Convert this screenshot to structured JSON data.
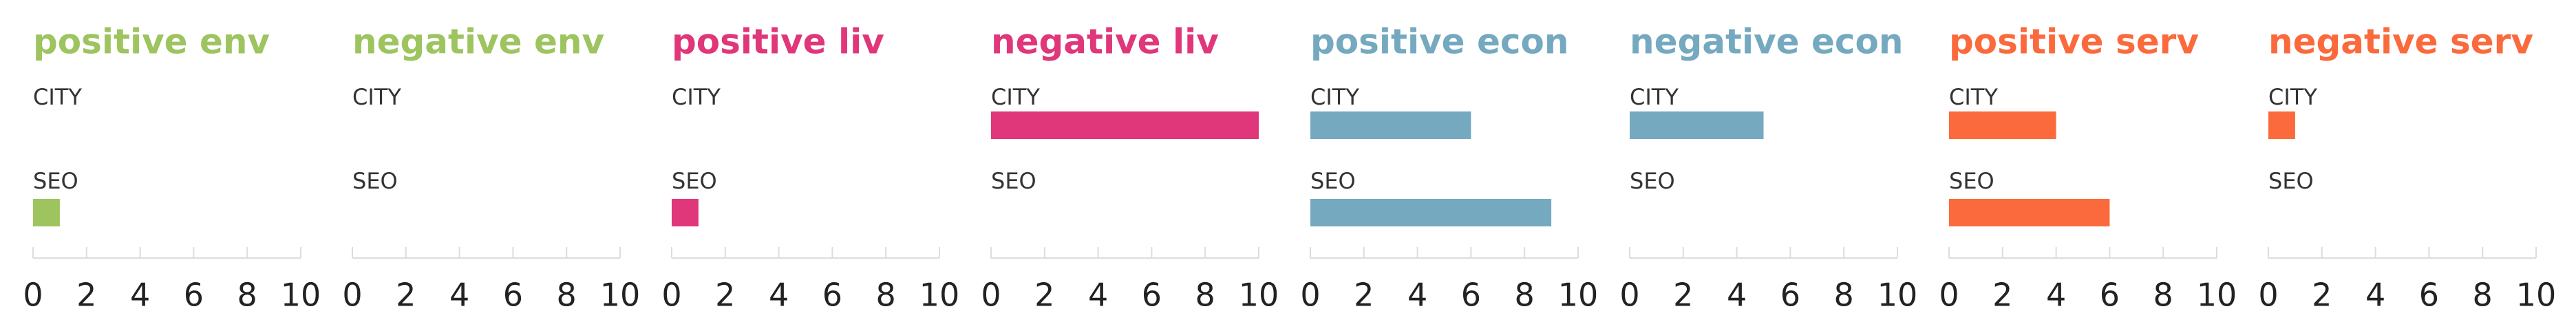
{
  "chart_data": [
    {
      "type": "bar",
      "orientation": "horizontal",
      "title": "positive env",
      "color": "#9dc45f",
      "categories": [
        "CITY",
        "SEO"
      ],
      "values": [
        0,
        1
      ],
      "xlim": [
        0,
        10
      ],
      "xticks": [
        0,
        2,
        4,
        6,
        8,
        10
      ]
    },
    {
      "type": "bar",
      "orientation": "horizontal",
      "title": "negative env",
      "color": "#9dc45f",
      "categories": [
        "CITY",
        "SEO"
      ],
      "values": [
        0,
        0
      ],
      "xlim": [
        0,
        10
      ],
      "xticks": [
        0,
        2,
        4,
        6,
        8,
        10
      ]
    },
    {
      "type": "bar",
      "orientation": "horizontal",
      "title": "positive liv",
      "color": "#e0367a",
      "categories": [
        "CITY",
        "SEO"
      ],
      "values": [
        0,
        1
      ],
      "xlim": [
        0,
        10
      ],
      "xticks": [
        0,
        2,
        4,
        6,
        8,
        10
      ]
    },
    {
      "type": "bar",
      "orientation": "horizontal",
      "title": "negative liv",
      "color": "#e0367a",
      "categories": [
        "CITY",
        "SEO"
      ],
      "values": [
        10,
        0
      ],
      "xlim": [
        0,
        10
      ],
      "xticks": [
        0,
        2,
        4,
        6,
        8,
        10
      ]
    },
    {
      "type": "bar",
      "orientation": "horizontal",
      "title": "positive econ",
      "color": "#74a9bf",
      "categories": [
        "CITY",
        "SEO"
      ],
      "values": [
        6,
        9
      ],
      "xlim": [
        0,
        10
      ],
      "xticks": [
        0,
        2,
        4,
        6,
        8,
        10
      ]
    },
    {
      "type": "bar",
      "orientation": "horizontal",
      "title": "negative econ",
      "color": "#74a9bf",
      "categories": [
        "CITY",
        "SEO"
      ],
      "values": [
        5,
        0
      ],
      "xlim": [
        0,
        10
      ],
      "xticks": [
        0,
        2,
        4,
        6,
        8,
        10
      ]
    },
    {
      "type": "bar",
      "orientation": "horizontal",
      "title": "positive serv",
      "color": "#fb6a3c",
      "categories": [
        "CITY",
        "SEO"
      ],
      "values": [
        4,
        6
      ],
      "xlim": [
        0,
        10
      ],
      "xticks": [
        0,
        2,
        4,
        6,
        8,
        10
      ]
    },
    {
      "type": "bar",
      "orientation": "horizontal",
      "title": "negative serv",
      "color": "#fb6a3c",
      "categories": [
        "CITY",
        "SEO"
      ],
      "values": [
        1,
        0
      ],
      "xlim": [
        0,
        10
      ],
      "xticks": [
        0,
        2,
        4,
        6,
        8,
        10
      ]
    }
  ]
}
